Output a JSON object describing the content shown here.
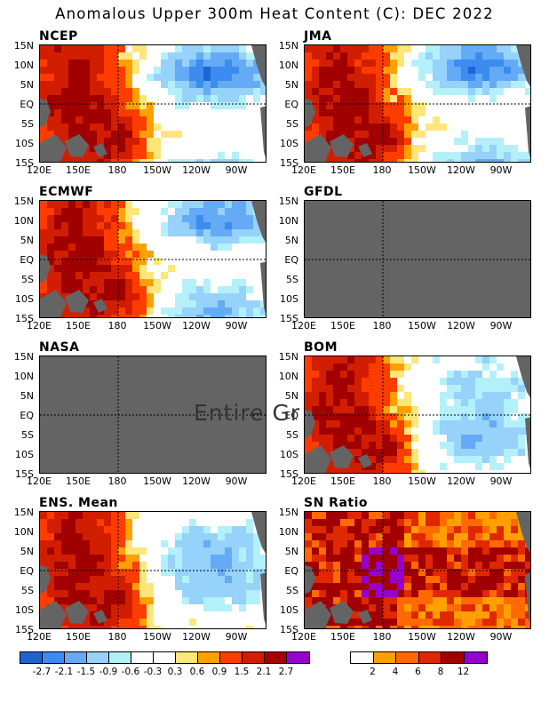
{
  "title": "Anomalous Upper 300m Heat Content (C): DEC 2022",
  "lat_ticks": [
    "15N",
    "10N",
    "5N",
    "EQ",
    "5S",
    "10S",
    "15S"
  ],
  "lon_ticks": [
    "120E",
    "150E",
    "180",
    "150W",
    "120W",
    "90W"
  ],
  "panels": [
    {
      "id": "ncep",
      "label": "NCEP",
      "status": "data"
    },
    {
      "id": "jma",
      "label": "JMA",
      "status": "data"
    },
    {
      "id": "ecmwf",
      "label": "ECMWF",
      "status": "data"
    },
    {
      "id": "gfdl",
      "label": "GFDL",
      "status": "no-data"
    },
    {
      "id": "nasa",
      "label": "NASA",
      "status": "no-data",
      "overlay_text": "Entire Gr"
    },
    {
      "id": "bom",
      "label": "BOM",
      "status": "data"
    },
    {
      "id": "ens",
      "label": "ENS. Mean",
      "status": "data"
    },
    {
      "id": "sn",
      "label": "SN Ratio",
      "status": "data"
    }
  ],
  "chart_data": {
    "type": "heatmap",
    "title": "Anomalous Upper 300m Heat Content (C): DEC 2022",
    "lat_range": [
      "15S",
      "15N"
    ],
    "lon_range": [
      "120E",
      "80W"
    ],
    "anomaly_colorbar": {
      "levels": [
        "-2.7",
        "-2.1",
        "-1.5",
        "-0.9",
        "-0.6",
        "-0.3",
        "0.3",
        "0.6",
        "0.9",
        "1.5",
        "2.1",
        "2.7"
      ],
      "colors": [
        "#1e64d2",
        "#3c8cf0",
        "#64aaf5",
        "#96d2fa",
        "#b4f0fa",
        "#ffffff",
        "#ffffff",
        "#ffe678",
        "#ffa000",
        "#ff3c00",
        "#d21e00",
        "#a00000",
        "#9600c8"
      ]
    },
    "sn_colorbar": {
      "levels": [
        "2",
        "4",
        "6",
        "8",
        "12"
      ],
      "colors": [
        "#ffffff",
        "#ffa000",
        "#ff6a00",
        "#e02800",
        "#a00000",
        "#9600c8"
      ]
    },
    "no_data_color": "#646464",
    "land_color": "#646464"
  }
}
